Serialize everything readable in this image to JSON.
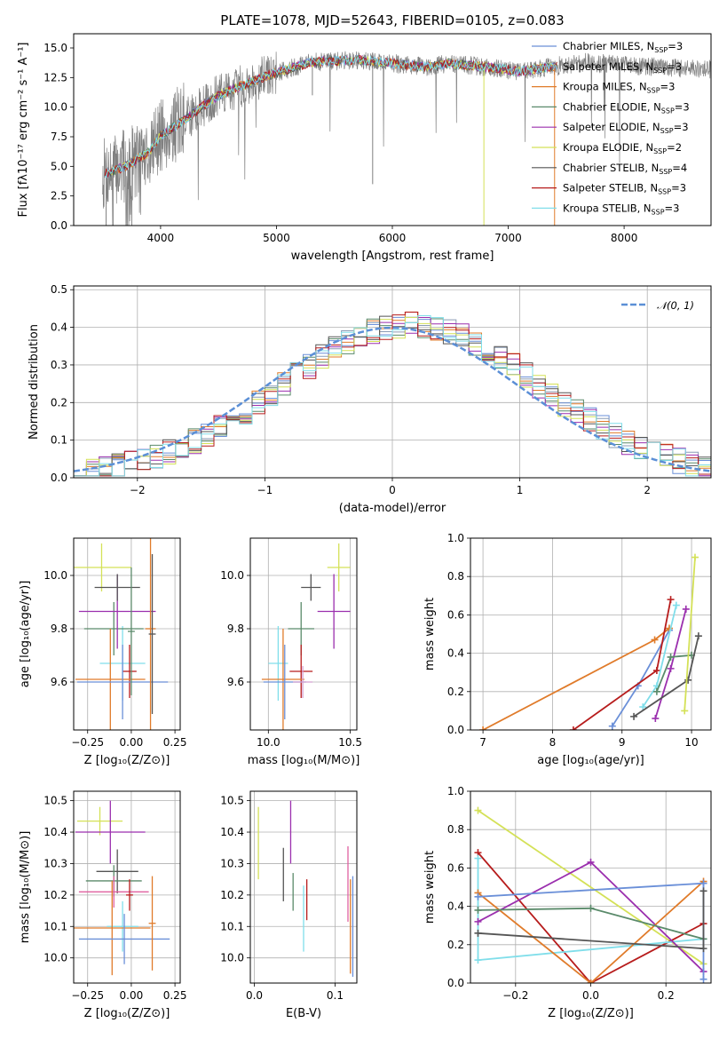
{
  "chart_data": [
    {
      "type": "line",
      "id": "spectrum",
      "title": "PLATE=1078, MJD=52643, FIBERID=0105, z=0.083",
      "xlabel": "wavelength [Angstrom, rest frame]",
      "ylabel": "Flux [fλ10⁻¹⁷ erg cm⁻² s⁻¹ A⁻¹]",
      "xlim": [
        3250,
        8750
      ],
      "ylim": [
        0,
        16.2
      ],
      "xticks": [
        "4000",
        "5000",
        "6000",
        "7000",
        "8000"
      ],
      "yticks": [
        "0.0",
        "2.5",
        "5.0",
        "7.5",
        "10.0",
        "12.5",
        "15.0"
      ],
      "grid": false,
      "legend_position": "top-right",
      "data_envelope": {
        "wavelength": [
          3500,
          3700,
          3900,
          4000,
          4100,
          4300,
          4500,
          4700,
          4900,
          5100,
          5300,
          5500,
          5700,
          5900,
          6100,
          6300,
          6500,
          6700,
          6900,
          7100,
          7300,
          7500,
          7700,
          7900,
          8100,
          8300,
          8500,
          8700
        ],
        "flux": [
          4.3,
          5.0,
          6.2,
          7.6,
          8.2,
          9.6,
          11.0,
          11.8,
          12.6,
          13.2,
          13.8,
          13.9,
          14.0,
          13.8,
          13.6,
          13.4,
          13.7,
          13.5,
          13.3,
          13.0,
          13.3,
          13.6,
          13.8,
          13.6,
          13.5,
          13.4,
          13.3,
          13.2
        ]
      },
      "series": [
        {
          "name": "Chabrier MILES, N_SSP=3",
          "label_main": "Chabrier MILES, N",
          "label_sub": "SSP",
          "label_tail": "=3",
          "color": "#6a8fd8"
        },
        {
          "name": "Salpeter MILES, N_SSP=3",
          "label_main": "Salpeter MILES, N",
          "label_sub": "SSP",
          "label_tail": "=3",
          "color": "#8a9bb5"
        },
        {
          "name": "Kroupa MILES, N_SSP=3",
          "label_main": "Kroupa MILES, N",
          "label_sub": "SSP",
          "label_tail": "=3",
          "color": "#e07b2a"
        },
        {
          "name": "Chabrier ELODIE, N_SSP=3",
          "label_main": "Chabrier ELODIE, N",
          "label_sub": "SSP",
          "label_tail": "=3",
          "color": "#5a8a6a"
        },
        {
          "name": "Salpeter ELODIE, N_SSP=3",
          "label_main": "Salpeter ELODIE, N",
          "label_sub": "SSP",
          "label_tail": "=3",
          "color": "#9b2fae"
        },
        {
          "name": "Kroupa ELODIE, N_SSP=2",
          "label_main": "Kroupa ELODIE, N",
          "label_sub": "SSP",
          "label_tail": "=2",
          "color": "#d4e157"
        },
        {
          "name": "Chabrier STELIB, N_SSP=4",
          "label_main": "Chabrier STELIB, N",
          "label_sub": "SSP",
          "label_tail": "=4",
          "color": "#555555"
        },
        {
          "name": "Salpeter STELIB, N_SSP=3",
          "label_main": "Salpeter STELIB, N",
          "label_sub": "SSP",
          "label_tail": "=3",
          "color": "#b71c1c"
        },
        {
          "name": "Kroupa STELIB, N_SSP=3",
          "label_main": "Kroupa STELIB, N",
          "label_sub": "SSP",
          "label_tail": "=3",
          "color": "#80deea"
        }
      ]
    },
    {
      "type": "line",
      "id": "residuals",
      "xlabel": "(data-model)/error",
      "ylabel": "Normed distribution",
      "xlim": [
        -2.5,
        2.5
      ],
      "ylim": [
        0,
        0.51
      ],
      "xticks": [
        "−2",
        "−1",
        "0",
        "1",
        "2"
      ],
      "yticks": [
        "0.0",
        "0.1",
        "0.2",
        "0.3",
        "0.4",
        "0.5"
      ],
      "grid": true,
      "legend_position": "top-right",
      "legend": "𝒩(0, 1)",
      "gaussian": {
        "mean": 0,
        "sigma": 1,
        "color": "#5b8fd6"
      },
      "bin_width": 0.1,
      "bin_start": -2.5
    },
    {
      "type": "scatter",
      "id": "age-vs-Z",
      "xlabel": "Z [log₁₀(Z/Z⊙)]",
      "ylabel": "age  [log₁₀(age/yr)]",
      "xlim": [
        -0.33,
        0.28
      ],
      "ylim": [
        9.42,
        10.14
      ],
      "xticks": [
        "−0.25",
        "0.00",
        "0.25"
      ],
      "yticks": [
        "9.6",
        "9.8",
        "10.0"
      ],
      "grid": true,
      "points": [
        {
          "x": -0.05,
          "y": 9.67,
          "xerr": 0.13,
          "yerr": 0.14,
          "color": "#80deea"
        },
        {
          "x": -0.1,
          "y": 9.8,
          "xerr": 0.17,
          "yerr": 0.1,
          "color": "#5a8a6a"
        },
        {
          "x": -0.08,
          "y": 9.865,
          "xerr": 0.22,
          "yerr": 0.14,
          "color": "#9b2fae"
        },
        {
          "x": -0.17,
          "y": 10.03,
          "xerr": 0.17,
          "yerr": 0.09,
          "color": "#d4e157"
        },
        {
          "x": -0.08,
          "y": 9.955,
          "xerr": 0.13,
          "yerr": 0.05,
          "color": "#555555"
        },
        {
          "x": -0.01,
          "y": 9.64,
          "xerr": 0.04,
          "yerr": 0.1,
          "color": "#b71c1c"
        },
        {
          "x": -0.12,
          "y": 9.61,
          "xerr": 0.2,
          "yerr": 0.19,
          "color": "#e07b2a"
        },
        {
          "x": -0.05,
          "y": 9.6,
          "xerr": 0.26,
          "yerr": 0.14,
          "color": "#6a8fd8"
        },
        {
          "x": 0.11,
          "y": 9.8,
          "xerr": 0.03,
          "yerr": 0.38,
          "color": "#e07b2a"
        },
        {
          "x": 0.12,
          "y": 9.78,
          "xerr": 0.02,
          "yerr": 0.3,
          "color": "#555555"
        },
        {
          "x": 0.0,
          "y": 9.79,
          "xerr": 0.02,
          "yerr": 0.24,
          "color": "#5a8a6a"
        }
      ]
    },
    {
      "type": "scatter",
      "id": "age-vs-mass",
      "xlabel": "mass [log₁₀(M/M⊙)]",
      "xlim": [
        9.89,
        10.54
      ],
      "ylim": [
        9.42,
        10.14
      ],
      "xticks": [
        "10.0",
        "10.5"
      ],
      "yticks": [
        "9.6",
        "9.8",
        "10.0"
      ],
      "grid": true,
      "points": [
        {
          "x": 10.43,
          "y": 10.03,
          "xerr": 0.07,
          "yerr": 0.09,
          "color": "#d4e157"
        },
        {
          "x": 10.4,
          "y": 9.865,
          "xerr": 0.1,
          "yerr": 0.14,
          "color": "#9b2fae"
        },
        {
          "x": 10.26,
          "y": 9.955,
          "xerr": 0.06,
          "yerr": 0.05,
          "color": "#555555"
        },
        {
          "x": 10.2,
          "y": 9.8,
          "xerr": 0.08,
          "yerr": 0.1,
          "color": "#5a8a6a"
        },
        {
          "x": 10.06,
          "y": 9.67,
          "xerr": 0.06,
          "yerr": 0.14,
          "color": "#80deea"
        },
        {
          "x": 10.2,
          "y": 9.64,
          "xerr": 0.07,
          "yerr": 0.1,
          "color": "#b71c1c"
        },
        {
          "x": 10.09,
          "y": 9.61,
          "xerr": 0.13,
          "yerr": 0.19,
          "color": "#e07b2a"
        },
        {
          "x": 10.1,
          "y": 9.6,
          "xerr": 0.13,
          "yerr": 0.14,
          "color": "#6a8fd8"
        },
        {
          "x": 10.21,
          "y": 9.6,
          "xerr": 0.06,
          "yerr": 0.06,
          "color": "#d4a0d0"
        }
      ]
    },
    {
      "type": "line",
      "id": "weight-vs-age",
      "xlabel": "age  [log₁₀(age/yr)]",
      "ylabel": "mass weight",
      "xlim": [
        6.82,
        10.28
      ],
      "ylim": [
        0,
        1
      ],
      "xticks": [
        "7",
        "8",
        "9",
        "10"
      ],
      "yticks": [
        "0.0",
        "0.2",
        "0.4",
        "0.6",
        "0.8",
        "1.0"
      ],
      "grid": true,
      "series": [
        {
          "color": "#6a8fd8",
          "x": [
            8.86,
            9.23,
            9.68
          ],
          "y": [
            0.02,
            0.23,
            0.52
          ]
        },
        {
          "color": "#e07b2a",
          "x": [
            7.0,
            9.47,
            9.68
          ],
          "y": [
            0.0,
            0.47,
            0.53
          ]
        },
        {
          "color": "#b71c1c",
          "x": [
            8.3,
            9.5,
            9.7
          ],
          "y": [
            0.0,
            0.31,
            0.68
          ]
        },
        {
          "color": "#80deea",
          "x": [
            9.3,
            9.5,
            9.78
          ],
          "y": [
            0.12,
            0.23,
            0.65
          ]
        },
        {
          "color": "#9b2fae",
          "x": [
            9.48,
            9.7,
            9.92
          ],
          "y": [
            0.06,
            0.32,
            0.63
          ]
        },
        {
          "color": "#5a8a6a",
          "x": [
            9.5,
            9.7,
            10.0
          ],
          "y": [
            0.2,
            0.38,
            0.39
          ]
        },
        {
          "color": "#555555",
          "x": [
            9.17,
            9.95,
            10.1
          ],
          "y": [
            0.07,
            0.26,
            0.49
          ]
        },
        {
          "color": "#d4e157",
          "x": [
            9.9,
            10.05
          ],
          "y": [
            0.1,
            0.9
          ]
        }
      ]
    },
    {
      "type": "scatter",
      "id": "mass-vs-Z",
      "xlabel": "Z [log₁₀(Z/Z⊙)]",
      "ylabel": "mass [log₁₀(M/M⊙)]",
      "xlim": [
        -0.33,
        0.28
      ],
      "ylim": [
        9.92,
        10.53
      ],
      "xticks": [
        "−0.25",
        "0.00",
        "0.25"
      ],
      "yticks": [
        "10.0",
        "10.1",
        "10.2",
        "10.3",
        "10.4",
        "10.5"
      ],
      "grid": true,
      "points": [
        {
          "x": -0.18,
          "y": 10.435,
          "xerr": 0.13,
          "yerr": 0.045,
          "color": "#d4e157"
        },
        {
          "x": -0.12,
          "y": 10.4,
          "xerr": 0.2,
          "yerr": 0.1,
          "color": "#9b2fae"
        },
        {
          "x": -0.08,
          "y": 10.275,
          "xerr": 0.12,
          "yerr": 0.07,
          "color": "#555555"
        },
        {
          "x": -0.1,
          "y": 10.245,
          "xerr": 0.16,
          "yerr": 0.05,
          "color": "#5a8a6a"
        },
        {
          "x": -0.1,
          "y": 10.21,
          "xerr": 0.2,
          "yerr": 0.05,
          "color": "#e060a0"
        },
        {
          "x": -0.01,
          "y": 10.2,
          "xerr": 0.02,
          "yerr": 0.05,
          "color": "#b71c1c"
        },
        {
          "x": -0.05,
          "y": 10.1,
          "xerr": 0.09,
          "yerr": 0.08,
          "color": "#80deea"
        },
        {
          "x": -0.11,
          "y": 10.095,
          "xerr": 0.22,
          "yerr": 0.15,
          "color": "#e07b2a"
        },
        {
          "x": -0.04,
          "y": 10.06,
          "xerr": 0.26,
          "yerr": 0.08,
          "color": "#6a8fd8"
        },
        {
          "x": 0.12,
          "y": 10.11,
          "xerr": 0.02,
          "yerr": 0.15,
          "color": "#e07b2a"
        }
      ]
    },
    {
      "type": "scatter",
      "id": "mass-vs-EBV",
      "xlabel": "E(B-V)",
      "xlim": [
        -0.005,
        0.127
      ],
      "ylim": [
        9.92,
        10.53
      ],
      "xticks": [
        "0.0",
        "0.1"
      ],
      "yticks": [
        "10.0",
        "10.1",
        "10.2",
        "10.3",
        "10.4",
        "10.5"
      ],
      "grid": true,
      "points": [
        {
          "x": 0.005,
          "y": 10.365,
          "yerr": 0.115,
          "color": "#d4e157"
        },
        {
          "x": 0.045,
          "y": 10.4,
          "yerr": 0.1,
          "color": "#9b2fae"
        },
        {
          "x": 0.036,
          "y": 10.265,
          "yerr": 0.085,
          "color": "#555555"
        },
        {
          "x": 0.048,
          "y": 10.21,
          "yerr": 0.06,
          "color": "#5a8a6a"
        },
        {
          "x": 0.065,
          "y": 10.185,
          "yerr": 0.065,
          "color": "#b71c1c"
        },
        {
          "x": 0.061,
          "y": 10.125,
          "yerr": 0.105,
          "color": "#80deea"
        },
        {
          "x": 0.116,
          "y": 10.235,
          "yerr": 0.12,
          "color": "#e060a0"
        },
        {
          "x": 0.119,
          "y": 10.1,
          "yerr": 0.15,
          "color": "#e07b2a"
        },
        {
          "x": 0.122,
          "y": 10.1,
          "yerr": 0.16,
          "color": "#6a8fd8"
        }
      ]
    },
    {
      "type": "line",
      "id": "weight-vs-Z",
      "xlabel": "Z [log₁₀(Z/Z⊙)]",
      "ylabel": "mass weight",
      "xlim": [
        -0.32,
        0.32
      ],
      "ylim": [
        0,
        1
      ],
      "xticks": [
        "−0.2",
        "0.0",
        "0.2"
      ],
      "yticks": [
        "0.0",
        "0.2",
        "0.4",
        "0.6",
        "0.8",
        "1.0"
      ],
      "grid": true,
      "series": [
        {
          "color": "#d4e157",
          "x": [
            -0.3,
            0.3
          ],
          "y": [
            0.9,
            0.1
          ]
        },
        {
          "color": "#b71c1c",
          "x": [
            -0.3,
            0.0,
            0.3
          ],
          "y": [
            0.68,
            0.0,
            0.31
          ]
        },
        {
          "color": "#80deea",
          "x": [
            -0.3,
            -0.3,
            0.3
          ],
          "y": [
            0.65,
            0.12,
            0.23
          ]
        },
        {
          "color": "#9b2fae",
          "x": [
            -0.3,
            0.0,
            0.3
          ],
          "y": [
            0.32,
            0.63,
            0.06
          ]
        },
        {
          "color": "#e07b2a",
          "x": [
            -0.3,
            0.0,
            0.3
          ],
          "y": [
            0.47,
            0.0,
            0.53
          ]
        },
        {
          "color": "#5a8a6a",
          "x": [
            -0.3,
            0.0,
            0.3
          ],
          "y": [
            0.38,
            0.39,
            0.23
          ]
        },
        {
          "color": "#6a8fd8",
          "x": [
            -0.3,
            0.3,
            0.3
          ],
          "y": [
            0.45,
            0.52,
            0.02
          ]
        },
        {
          "color": "#555555",
          "x": [
            -0.3,
            0.3,
            0.3
          ],
          "y": [
            0.26,
            0.18,
            0.48
          ]
        }
      ]
    }
  ]
}
